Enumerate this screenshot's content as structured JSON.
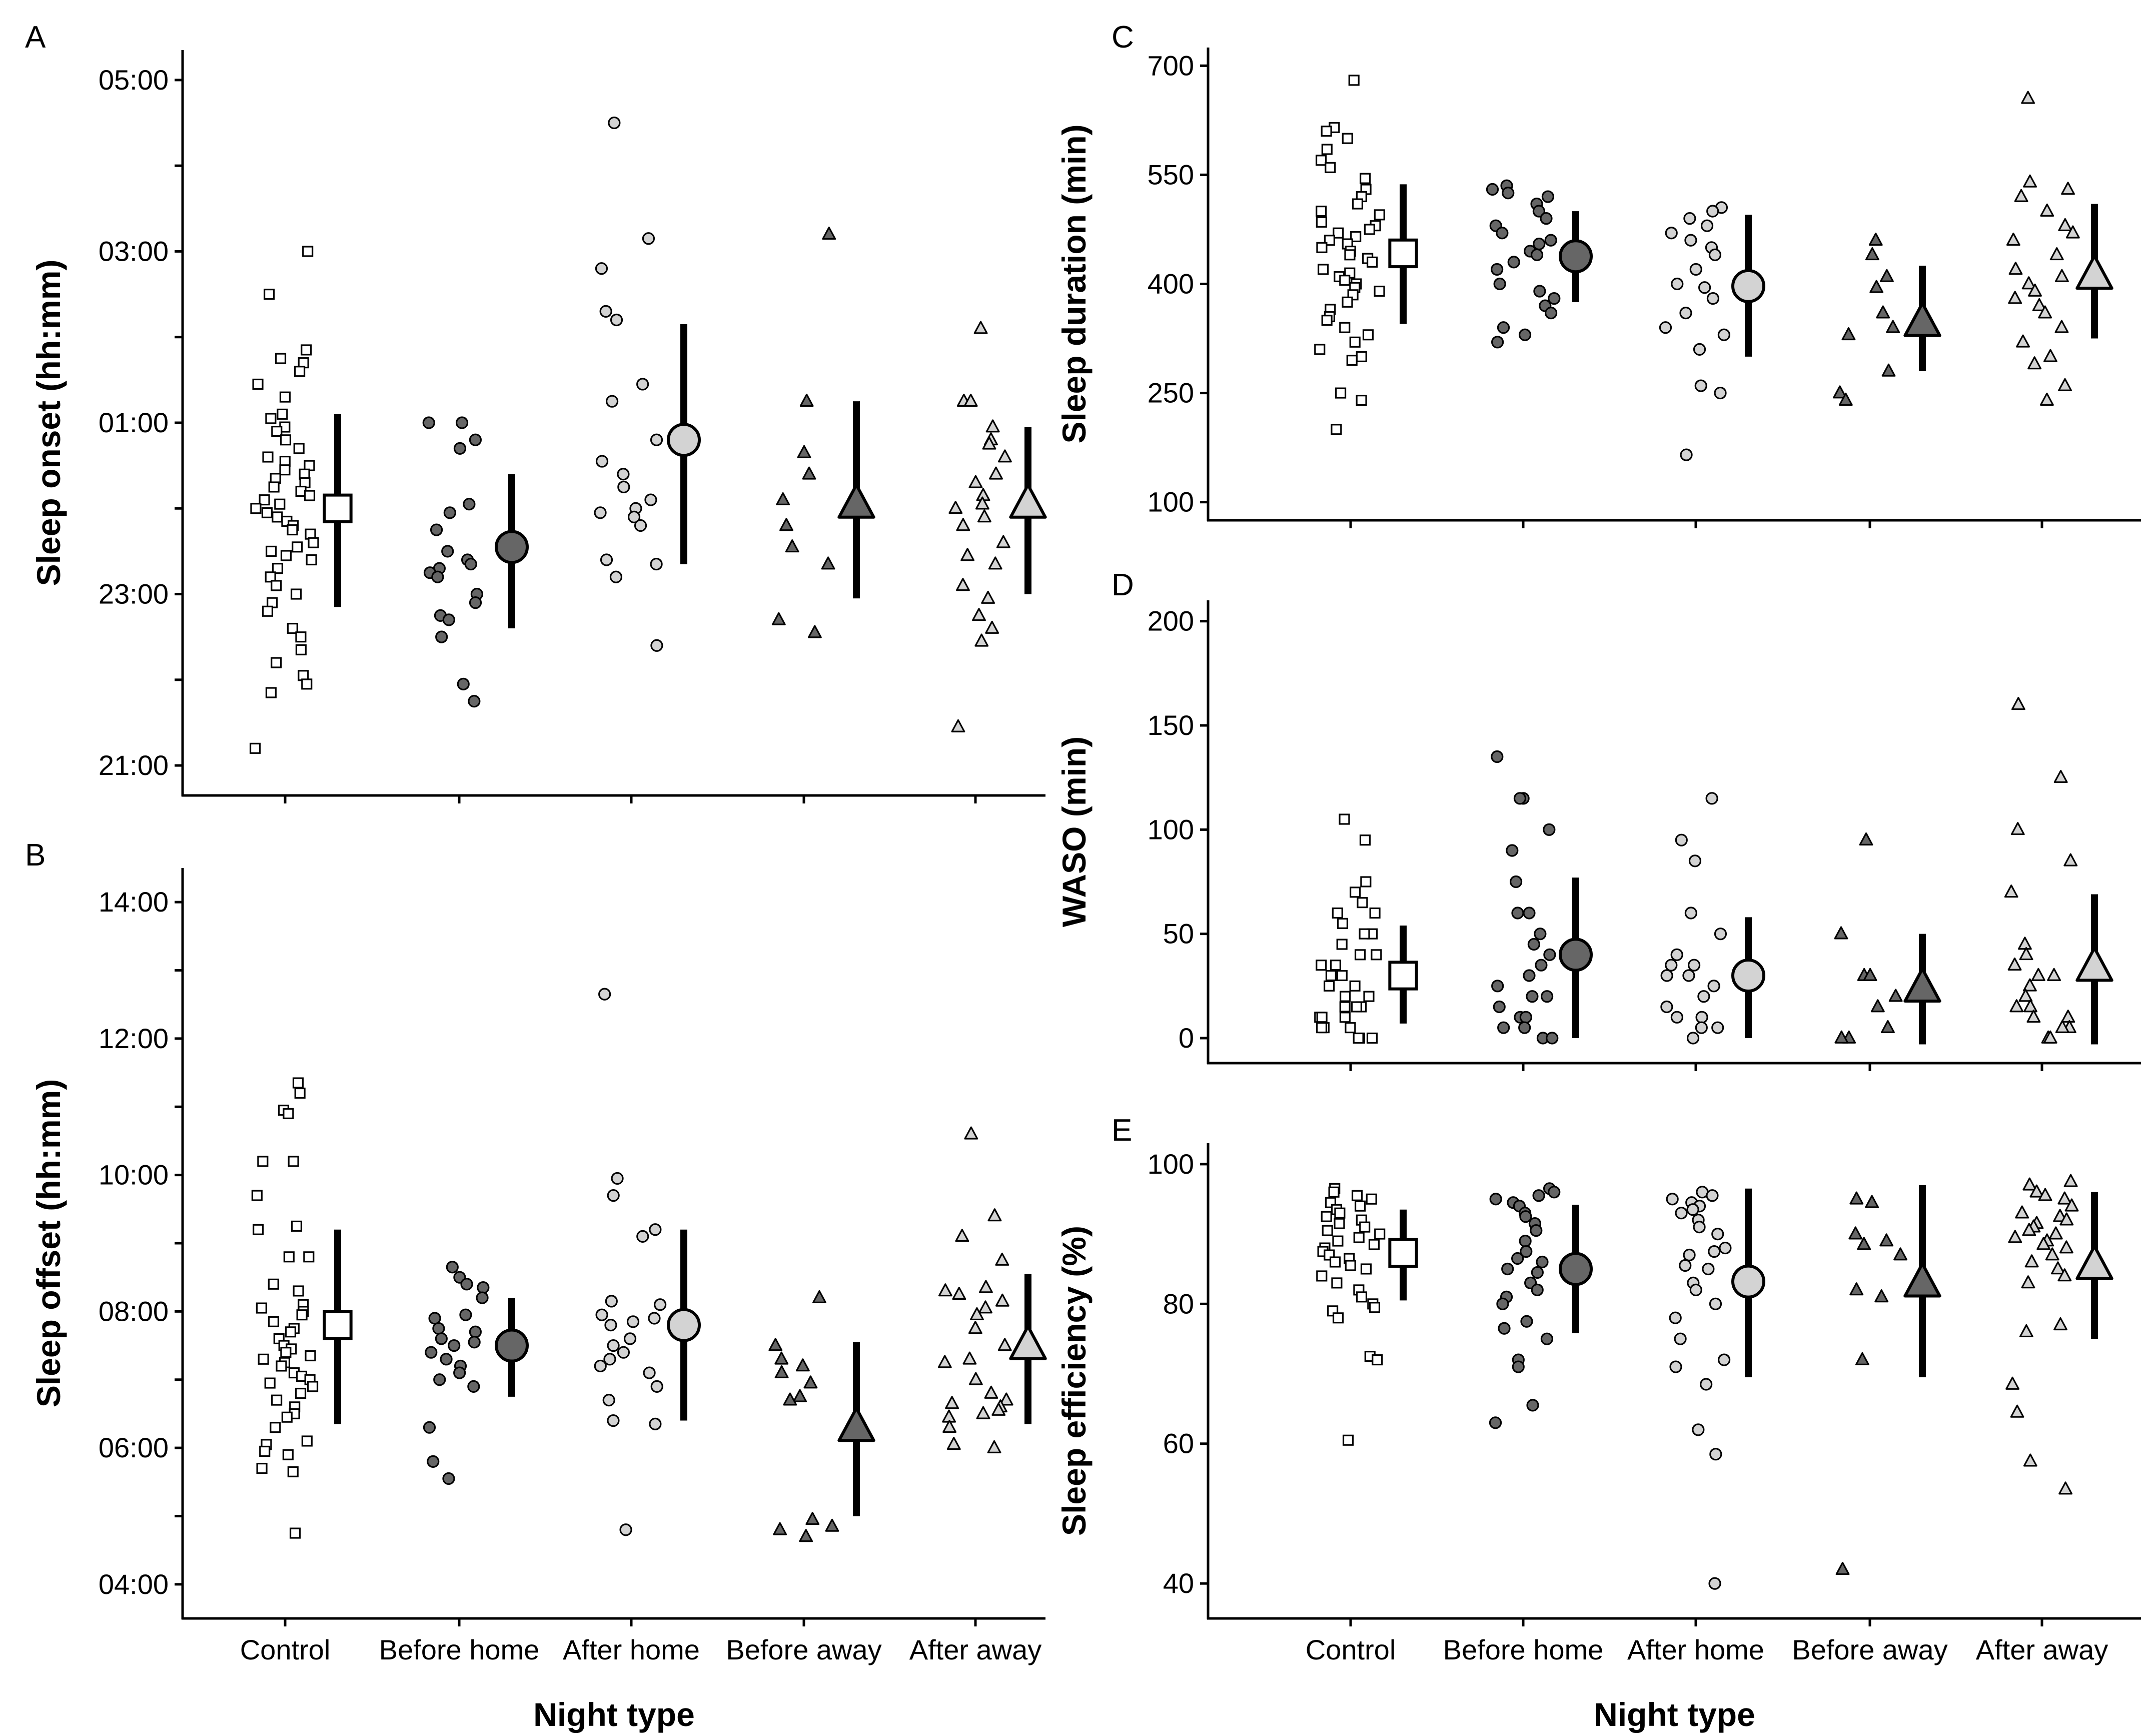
{
  "figure": {
    "xlabel": "Night type",
    "categories": [
      "Control",
      "Before home",
      "After home",
      "Before away",
      "After away"
    ],
    "colors": {
      "Control": "#ffffff",
      "Before home": "#666666",
      "After home": "#d3d3d3",
      "Before away": "#666666",
      "After away": "#d3d3d3",
      "stroke": "#000000",
      "axis": "#000000"
    },
    "shapes": {
      "Control": "square-icon",
      "Before home": "circle-icon",
      "After home": "circle-icon",
      "Before away": "triangle-icon",
      "After away": "triangle-icon"
    }
  },
  "chart_data": [
    {
      "panel": "A",
      "type": "scatter",
      "title": "",
      "ylabel": "Sleep onset (hh:mm)",
      "xlabel": "",
      "ylim": [
        20.65,
        29.35
      ],
      "yticks": [
        21,
        23,
        25,
        27,
        29
      ],
      "yticklabels": [
        "21:00",
        "23:00",
        "01:00",
        "03:00",
        "05:00"
      ],
      "minor_yticks": [
        22,
        24,
        26,
        28
      ],
      "show_xticklabels": false,
      "series": [
        {
          "name": "Control",
          "mean": 24.0,
          "low": 22.85,
          "high": 25.1,
          "points": [
            27.0,
            26.5,
            25.85,
            25.75,
            25.7,
            25.6,
            25.45,
            25.3,
            25.1,
            25.05,
            24.95,
            24.9,
            24.8,
            24.7,
            24.6,
            24.55,
            24.5,
            24.45,
            24.4,
            24.35,
            24.3,
            24.25,
            24.2,
            24.15,
            24.1,
            24.05,
            24.0,
            23.95,
            23.9,
            23.85,
            23.8,
            23.75,
            23.7,
            23.6,
            23.55,
            23.5,
            23.45,
            23.4,
            23.3,
            23.2,
            23.1,
            23.0,
            22.9,
            22.8,
            22.6,
            22.5,
            22.35,
            22.2,
            22.05,
            21.95,
            21.85,
            21.2
          ]
        },
        {
          "name": "Before home",
          "mean": 23.55,
          "low": 22.6,
          "high": 24.4,
          "points": [
            25.0,
            25.0,
            24.8,
            24.7,
            24.05,
            23.95,
            23.75,
            23.5,
            23.4,
            23.35,
            23.3,
            23.25,
            23.2,
            23.0,
            22.9,
            22.75,
            22.7,
            22.5,
            21.95,
            21.75
          ]
        },
        {
          "name": "After home",
          "mean": 24.8,
          "low": 23.35,
          "high": 26.15,
          "points": [
            28.5,
            27.15,
            26.8,
            26.3,
            26.2,
            25.45,
            25.25,
            24.8,
            24.55,
            24.4,
            24.25,
            24.1,
            24.0,
            23.95,
            23.9,
            23.8,
            23.4,
            23.35,
            23.2,
            22.4
          ]
        },
        {
          "name": "Before away",
          "mean": 24.05,
          "low": 22.95,
          "high": 25.25,
          "points": [
            27.2,
            25.25,
            24.65,
            24.4,
            24.1,
            23.8,
            23.55,
            23.35,
            22.7,
            22.55
          ]
        },
        {
          "name": "After away",
          "mean": 24.05,
          "low": 23.0,
          "high": 24.95,
          "points": [
            26.1,
            25.25,
            25.25,
            24.95,
            24.8,
            24.75,
            24.6,
            24.4,
            24.3,
            24.15,
            24.05,
            24.0,
            23.9,
            23.8,
            23.6,
            23.45,
            23.35,
            23.1,
            22.95,
            22.75,
            22.6,
            22.45,
            21.45
          ]
        }
      ]
    },
    {
      "panel": "B",
      "type": "scatter",
      "title": "",
      "ylabel": "Sleep offset (hh:mm)",
      "xlabel": "Night type",
      "ylim": [
        3.5,
        14.5
      ],
      "yticks": [
        4,
        6,
        8,
        10,
        12,
        14
      ],
      "yticklabels": [
        "04:00",
        "06:00",
        "08:00",
        "10:00",
        "12:00",
        "14:00"
      ],
      "minor_yticks": [
        5,
        7,
        9,
        11,
        13
      ],
      "show_xticklabels": true,
      "series": [
        {
          "name": "Control",
          "mean": 7.8,
          "low": 6.35,
          "high": 9.2,
          "points": [
            11.35,
            11.2,
            10.95,
            10.9,
            10.2,
            10.2,
            9.7,
            9.25,
            9.2,
            8.8,
            8.8,
            8.4,
            8.3,
            8.1,
            8.05,
            8.0,
            7.95,
            7.85,
            7.75,
            7.7,
            7.6,
            7.5,
            7.45,
            7.4,
            7.35,
            7.3,
            7.25,
            7.2,
            7.1,
            7.05,
            7.0,
            6.95,
            6.9,
            6.8,
            6.7,
            6.6,
            6.5,
            6.45,
            6.3,
            6.1,
            6.05,
            5.95,
            5.9,
            5.7,
            5.65,
            4.75
          ]
        },
        {
          "name": "Before home",
          "mean": 7.5,
          "low": 6.75,
          "high": 8.2,
          "points": [
            8.65,
            8.5,
            8.4,
            8.35,
            8.2,
            7.95,
            7.9,
            7.75,
            7.7,
            7.6,
            7.55,
            7.5,
            7.4,
            7.3,
            7.2,
            7.1,
            7.0,
            6.9,
            6.3,
            5.8,
            5.55
          ]
        },
        {
          "name": "After home",
          "mean": 7.8,
          "low": 6.4,
          "high": 9.2,
          "points": [
            12.65,
            9.95,
            9.7,
            9.2,
            9.1,
            8.15,
            8.1,
            7.95,
            7.9,
            7.85,
            7.8,
            7.6,
            7.5,
            7.4,
            7.3,
            7.2,
            7.1,
            6.9,
            6.7,
            6.4,
            6.35,
            4.8
          ]
        },
        {
          "name": "Before away",
          "mean": 6.3,
          "low": 5.0,
          "high": 7.55,
          "points": [
            8.2,
            7.5,
            7.3,
            7.2,
            7.1,
            6.95,
            6.75,
            6.7,
            4.95,
            4.85,
            4.8,
            4.7
          ]
        },
        {
          "name": "After away",
          "mean": 7.5,
          "low": 6.35,
          "high": 8.55,
          "points": [
            10.6,
            9.4,
            9.1,
            8.75,
            8.35,
            8.3,
            8.25,
            8.15,
            8.05,
            7.95,
            7.75,
            7.5,
            7.3,
            7.25,
            7.0,
            6.8,
            6.7,
            6.65,
            6.6,
            6.55,
            6.5,
            6.45,
            6.3,
            6.05,
            6.0
          ]
        }
      ]
    },
    {
      "panel": "C",
      "type": "scatter",
      "title": "",
      "ylabel": "Sleep duration (min)",
      "xlabel": "",
      "ylim": [
        75,
        725
      ],
      "yticks": [
        100,
        250,
        400,
        550,
        700
      ],
      "yticklabels": [
        "100",
        "250",
        "400",
        "550",
        "700"
      ],
      "minor_yticks": [],
      "show_xticklabels": false,
      "series": [
        {
          "name": "Control",
          "mean": 442,
          "low": 345,
          "high": 537,
          "points": [
            680,
            615,
            610,
            600,
            585,
            570,
            560,
            545,
            530,
            520,
            510,
            500,
            495,
            485,
            480,
            475,
            470,
            465,
            460,
            455,
            450,
            445,
            440,
            435,
            430,
            420,
            415,
            410,
            405,
            400,
            395,
            390,
            385,
            375,
            365,
            355,
            350,
            340,
            330,
            320,
            310,
            300,
            295,
            250,
            240,
            200
          ]
        },
        {
          "name": "Before home",
          "mean": 438,
          "low": 375,
          "high": 500,
          "points": [
            535,
            530,
            525,
            520,
            510,
            500,
            490,
            480,
            470,
            460,
            455,
            445,
            440,
            430,
            420,
            400,
            390,
            380,
            370,
            360,
            340,
            330,
            320
          ]
        },
        {
          "name": "After home",
          "mean": 397,
          "low": 300,
          "high": 495,
          "points": [
            505,
            500,
            490,
            480,
            470,
            460,
            450,
            440,
            420,
            400,
            395,
            380,
            360,
            340,
            330,
            310,
            260,
            250,
            165
          ]
        },
        {
          "name": "Before away",
          "mean": 347,
          "low": 280,
          "high": 425,
          "points": [
            460,
            440,
            410,
            395,
            360,
            340,
            330,
            280,
            250,
            240
          ]
        },
        {
          "name": "After away",
          "mean": 412,
          "low": 325,
          "high": 510,
          "points": [
            655,
            540,
            530,
            520,
            500,
            480,
            470,
            460,
            440,
            420,
            410,
            400,
            390,
            380,
            370,
            360,
            340,
            320,
            300,
            290,
            260,
            240
          ]
        }
      ]
    },
    {
      "panel": "D",
      "type": "scatter",
      "title": "",
      "ylabel": "WASO (min)",
      "xlabel": "",
      "ylim": [
        -12,
        210
      ],
      "yticks": [
        0,
        50,
        100,
        150,
        200
      ],
      "yticklabels": [
        "0",
        "50",
        "100",
        "150",
        "200"
      ],
      "minor_yticks": [],
      "show_xticklabels": false,
      "series": [
        {
          "name": "Control",
          "mean": 30,
          "low": 7,
          "high": 54,
          "points": [
            105,
            95,
            75,
            70,
            65,
            60,
            60,
            55,
            50,
            50,
            45,
            40,
            40,
            35,
            35,
            30,
            30,
            25,
            25,
            20,
            20,
            15,
            15,
            15,
            10,
            10,
            10,
            5,
            5,
            5,
            0,
            0,
            0
          ]
        },
        {
          "name": "Before home",
          "mean": 40,
          "low": 0,
          "high": 77,
          "points": [
            135,
            115,
            115,
            100,
            90,
            75,
            60,
            60,
            50,
            45,
            40,
            35,
            30,
            25,
            20,
            20,
            15,
            10,
            10,
            5,
            5,
            0,
            0
          ]
        },
        {
          "name": "After home",
          "mean": 30,
          "low": 0,
          "high": 58,
          "points": [
            115,
            95,
            85,
            60,
            50,
            40,
            35,
            35,
            30,
            30,
            25,
            20,
            15,
            10,
            10,
            5,
            5,
            0
          ]
        },
        {
          "name": "Before away",
          "mean": 24,
          "low": -3,
          "high": 50,
          "points": [
            95,
            50,
            30,
            30,
            20,
            15,
            5,
            0,
            0
          ]
        },
        {
          "name": "After away",
          "mean": 34,
          "low": -3,
          "high": 69,
          "points": [
            160,
            125,
            100,
            85,
            70,
            45,
            40,
            35,
            30,
            30,
            25,
            20,
            15,
            15,
            10,
            10,
            5,
            5,
            0,
            0
          ]
        }
      ]
    },
    {
      "panel": "E",
      "type": "scatter",
      "title": "",
      "ylabel": "Sleep efficiency (%)",
      "xlabel": "Night type",
      "ylim": [
        35,
        103
      ],
      "yticks": [
        40,
        60,
        80,
        100
      ],
      "yticklabels": [
        "40",
        "60",
        "80",
        "100"
      ],
      "minor_yticks": [],
      "show_xticklabels": true,
      "series": [
        {
          "name": "Control",
          "mean": 87.3,
          "low": 80.5,
          "high": 93.5,
          "points": [
            96.5,
            96.0,
            95.5,
            95.0,
            94.5,
            94.0,
            93.5,
            93.0,
            92.5,
            92.0,
            91.5,
            91.0,
            90.5,
            90.0,
            89.5,
            89.0,
            88.5,
            88.0,
            87.5,
            87.0,
            86.5,
            86.0,
            85.5,
            85.0,
            84.0,
            83.0,
            82.0,
            81.0,
            80.0,
            79.5,
            79.0,
            78.0,
            72.5,
            72.0,
            60.5
          ]
        },
        {
          "name": "Before home",
          "mean": 85.0,
          "low": 75.8,
          "high": 94.2,
          "points": [
            96.5,
            96.0,
            95.5,
            95.0,
            94.5,
            94.0,
            93.0,
            92.5,
            91.5,
            90.5,
            89.0,
            87.5,
            86.5,
            86.0,
            85.0,
            84.5,
            83.0,
            82.0,
            81.0,
            80.0,
            77.5,
            76.5,
            75.0,
            72.0,
            71.0,
            65.5,
            63.0
          ]
        },
        {
          "name": "After home",
          "mean": 83.2,
          "low": 69.5,
          "high": 96.5,
          "points": [
            96.0,
            95.5,
            95.0,
            94.5,
            94.0,
            93.5,
            93.0,
            92.0,
            91.0,
            90.0,
            88.0,
            87.5,
            87.0,
            85.5,
            85.0,
            83.0,
            82.0,
            80.0,
            78.0,
            75.0,
            72.0,
            71.0,
            68.5,
            62.0,
            58.5,
            40.0
          ]
        },
        {
          "name": "Before away",
          "mean": 83.0,
          "low": 69.5,
          "high": 97.0,
          "points": [
            95.0,
            94.5,
            90.0,
            89.0,
            88.5,
            87.0,
            82.0,
            81.0,
            72.0,
            42.0
          ]
        },
        {
          "name": "After away",
          "mean": 85.5,
          "low": 75.0,
          "high": 96.0,
          "points": [
            97.5,
            97.0,
            96.0,
            95.5,
            95.0,
            94.0,
            93.0,
            92.5,
            92.0,
            91.5,
            91.0,
            90.5,
            90.0,
            89.5,
            89.0,
            88.5,
            88.0,
            87.0,
            86.0,
            85.0,
            84.0,
            83.0,
            77.0,
            76.0,
            68.5,
            64.5,
            57.5,
            53.5
          ]
        }
      ]
    }
  ]
}
